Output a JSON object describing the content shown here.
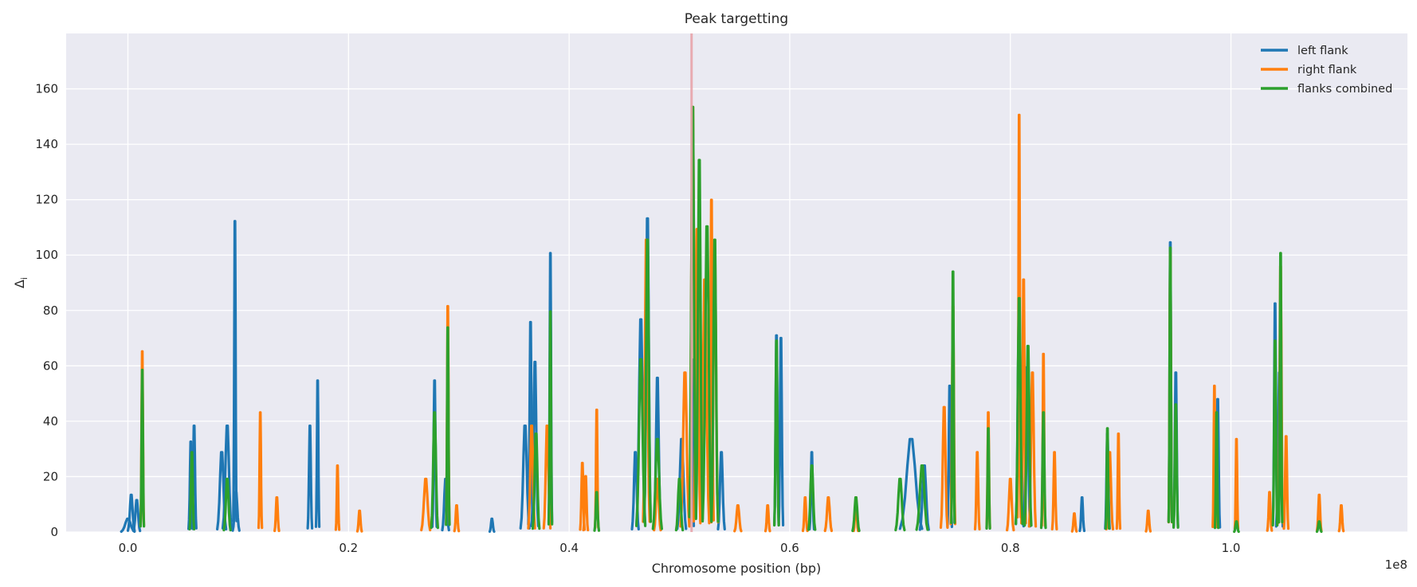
{
  "chart_data": {
    "type": "line",
    "title": "Peak targetting",
    "xlabel": "Chromosome position (bp)",
    "ylabel": "Δ",
    "ylabel_subscript": "i",
    "x_offset_label": "1e8",
    "xlim": [
      -0.056,
      1.16
    ],
    "ylim": [
      0,
      180
    ],
    "x_ticks": [
      0.0,
      0.2,
      0.4,
      0.6,
      0.8,
      1.0
    ],
    "x_tick_labels": [
      "0.0",
      "0.2",
      "0.4",
      "0.6",
      "0.8",
      "1.0"
    ],
    "y_ticks": [
      0,
      20,
      40,
      60,
      80,
      100,
      120,
      140,
      160
    ],
    "y_tick_labels": [
      "0",
      "20",
      "40",
      "60",
      "80",
      "100",
      "120",
      "140",
      "160"
    ],
    "grid": true,
    "legend_position": "top-right",
    "marker_line": {
      "x": 0.511,
      "color": "#e8a5aa"
    },
    "colors": {
      "left": "#1f77b4",
      "right": "#ff7f0e",
      "combined": "#2ca02c",
      "background": "#eaeaf2",
      "grid": "#ffffff"
    },
    "series": [
      {
        "name": "left flank",
        "key": "left",
        "peaks": [
          [
            0.0,
            5,
            0.006
          ],
          [
            0.003,
            14,
            0.003
          ],
          [
            0.008,
            12,
            0.003
          ],
          [
            0.057,
            34,
            0.002
          ],
          [
            0.06,
            40,
            0.002
          ],
          [
            0.085,
            30,
            0.004
          ],
          [
            0.09,
            40,
            0.004
          ],
          [
            0.097,
            117,
            0.0015
          ],
          [
            0.098,
            15,
            0.003
          ],
          [
            0.165,
            40,
            0.002
          ],
          [
            0.172,
            57,
            0.0015
          ],
          [
            0.278,
            57,
            0.002
          ],
          [
            0.288,
            20,
            0.003
          ],
          [
            0.33,
            5,
            0.002
          ],
          [
            0.36,
            40,
            0.004
          ],
          [
            0.365,
            79,
            0.002
          ],
          [
            0.369,
            64,
            0.003
          ],
          [
            0.383,
            105,
            0.0015
          ],
          [
            0.46,
            30,
            0.003
          ],
          [
            0.465,
            80,
            0.004
          ],
          [
            0.471,
            118,
            0.003
          ],
          [
            0.48,
            58,
            0.003
          ],
          [
            0.502,
            35,
            0.004
          ],
          [
            0.511,
            65,
            0.002
          ],
          [
            0.538,
            30,
            0.003
          ],
          [
            0.588,
            74,
            0.002
          ],
          [
            0.592,
            73,
            0.002
          ],
          [
            0.62,
            30,
            0.002
          ],
          [
            0.71,
            35,
            0.01
          ],
          [
            0.722,
            25,
            0.004
          ],
          [
            0.745,
            55,
            0.002
          ],
          [
            0.808,
            85,
            0.003
          ],
          [
            0.815,
            62,
            0.003
          ],
          [
            0.865,
            13,
            0.002
          ],
          [
            0.888,
            37,
            0.002
          ],
          [
            0.945,
            109,
            0.0015
          ],
          [
            0.95,
            60,
            0.002
          ],
          [
            0.988,
            50,
            0.002
          ],
          [
            1.04,
            86,
            0.002
          ],
          [
            1.044,
            60,
            0.003
          ]
        ]
      },
      {
        "name": "right flank",
        "key": "right",
        "peaks": [
          [
            0.013,
            68,
            0.0015
          ],
          [
            0.12,
            45,
            0.0015
          ],
          [
            0.135,
            13,
            0.002
          ],
          [
            0.19,
            25,
            0.0015
          ],
          [
            0.21,
            8,
            0.002
          ],
          [
            0.27,
            20,
            0.004
          ],
          [
            0.29,
            85,
            0.0015
          ],
          [
            0.298,
            10,
            0.002
          ],
          [
            0.366,
            40,
            0.003
          ],
          [
            0.38,
            40,
            0.003
          ],
          [
            0.412,
            26,
            0.002
          ],
          [
            0.415,
            21,
            0.002
          ],
          [
            0.425,
            46,
            0.0015
          ],
          [
            0.47,
            110,
            0.003
          ],
          [
            0.48,
            20,
            0.003
          ],
          [
            0.505,
            60,
            0.004
          ],
          [
            0.512,
            160,
            0.003
          ],
          [
            0.516,
            114,
            0.003
          ],
          [
            0.523,
            95,
            0.004
          ],
          [
            0.529,
            125,
            0.002
          ],
          [
            0.532,
            105,
            0.003
          ],
          [
            0.553,
            10,
            0.003
          ],
          [
            0.58,
            10,
            0.002
          ],
          [
            0.614,
            13,
            0.002
          ],
          [
            0.635,
            13,
            0.003
          ],
          [
            0.66,
            13,
            0.002
          ],
          [
            0.74,
            47,
            0.003
          ],
          [
            0.748,
            85,
            0.002
          ],
          [
            0.77,
            30,
            0.002
          ],
          [
            0.78,
            45,
            0.0015
          ],
          [
            0.8,
            20,
            0.003
          ],
          [
            0.808,
            157,
            0.0015
          ],
          [
            0.812,
            95,
            0.002
          ],
          [
            0.82,
            60,
            0.003
          ],
          [
            0.83,
            67,
            0.0015
          ],
          [
            0.84,
            30,
            0.002
          ],
          [
            0.858,
            7,
            0.002
          ],
          [
            0.89,
            30,
            0.003
          ],
          [
            0.898,
            37,
            0.0015
          ],
          [
            0.925,
            8,
            0.002
          ],
          [
            0.945,
            105,
            0.0015
          ],
          [
            0.985,
            55,
            0.0015
          ],
          [
            1.005,
            35,
            0.0015
          ],
          [
            1.035,
            15,
            0.002
          ],
          [
            1.045,
            100,
            0.002
          ],
          [
            1.05,
            36,
            0.002
          ],
          [
            1.08,
            14,
            0.002
          ],
          [
            1.1,
            10,
            0.002
          ]
        ]
      },
      {
        "name": "flanks combined",
        "key": "combined",
        "peaks": [
          [
            0.013,
            61,
            0.0015
          ],
          [
            0.058,
            30,
            0.002
          ],
          [
            0.09,
            20,
            0.003
          ],
          [
            0.278,
            45,
            0.003
          ],
          [
            0.29,
            77,
            0.0015
          ],
          [
            0.37,
            37,
            0.003
          ],
          [
            0.383,
            83,
            0.0015
          ],
          [
            0.425,
            15,
            0.002
          ],
          [
            0.465,
            65,
            0.004
          ],
          [
            0.471,
            110,
            0.003
          ],
          [
            0.48,
            35,
            0.004
          ],
          [
            0.5,
            20,
            0.003
          ],
          [
            0.512,
            160,
            0.003
          ],
          [
            0.518,
            140,
            0.003
          ],
          [
            0.525,
            115,
            0.004
          ],
          [
            0.532,
            110,
            0.003
          ],
          [
            0.588,
            72,
            0.002
          ],
          [
            0.62,
            25,
            0.003
          ],
          [
            0.66,
            13,
            0.003
          ],
          [
            0.7,
            20,
            0.004
          ],
          [
            0.72,
            25,
            0.005
          ],
          [
            0.748,
            98,
            0.0015
          ],
          [
            0.78,
            39,
            0.0015
          ],
          [
            0.808,
            88,
            0.003
          ],
          [
            0.816,
            70,
            0.003
          ],
          [
            0.83,
            45,
            0.002
          ],
          [
            0.888,
            39,
            0.0015
          ],
          [
            0.945,
            107,
            0.0015
          ],
          [
            0.95,
            48,
            0.002
          ],
          [
            0.987,
            45,
            0.0015
          ],
          [
            1.005,
            4,
            0.002
          ],
          [
            1.045,
            105,
            0.0015
          ],
          [
            1.04,
            72,
            0.002
          ],
          [
            1.08,
            4,
            0.002
          ]
        ]
      }
    ]
  }
}
